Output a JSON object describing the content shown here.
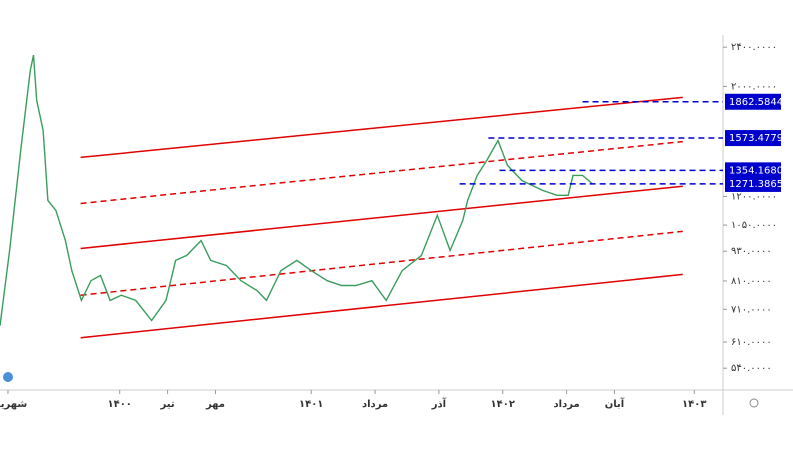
{
  "chart_data": {
    "type": "line",
    "log_scale": true,
    "grid": false,
    "xlim": [
      -0.5,
      44.8
    ],
    "ylim": [
      488,
      2540
    ],
    "xticks": [
      {
        "value": 0,
        "label": "شهریور"
      },
      {
        "value": 7,
        "label": "۱۴۰۰"
      },
      {
        "value": 10,
        "label": "تیر"
      },
      {
        "value": 13,
        "label": "مهر"
      },
      {
        "value": 19,
        "label": "۱۴۰۱"
      },
      {
        "value": 23,
        "label": "مرداد"
      },
      {
        "value": 27,
        "label": "آذر"
      },
      {
        "value": 31,
        "label": "۱۴۰۲"
      },
      {
        "value": 35,
        "label": "مرداد"
      },
      {
        "value": 38,
        "label": "آبان"
      },
      {
        "value": 43,
        "label": "۱۴۰۳"
      }
    ],
    "yticks": [
      {
        "value": 2400,
        "label": "۲۴۰۰.۰۰۰۰"
      },
      {
        "value": 2000,
        "label": "۲۰۰۰.۰۰۰۰"
      },
      {
        "value": 1200,
        "label": "۱۲۰۰.۰۰۰۰"
      },
      {
        "value": 1050,
        "label": "۱۰۵۰.۰۰۰۰"
      },
      {
        "value": 930,
        "label": "۹۳۰.۰۰۰۰"
      },
      {
        "value": 810,
        "label": "۸۱۰.۰۰۰۰"
      },
      {
        "value": 710,
        "label": "۷۱۰.۰۰۰۰"
      },
      {
        "value": 610,
        "label": "۶۱۰.۰۰۰۰"
      },
      {
        "value": 540,
        "label": "۵۴۰.۰۰۰۰"
      }
    ],
    "series": [
      {
        "color": "#3a9d5d",
        "x": [
          -0.5,
          0.1,
          0.8,
          1.4,
          1.6,
          1.8,
          2.2,
          2.5,
          3.0,
          3.6,
          4.0,
          4.6,
          5.2,
          5.8,
          6.4,
          7.1,
          8.0,
          9.0,
          9.9,
          10.5,
          11.2,
          12.1,
          12.7,
          13.7,
          14.6,
          15.6,
          16.2,
          17.1,
          18.1,
          19.0,
          20.0,
          20.9,
          21.8,
          22.8,
          23.7,
          24.7,
          25.9,
          26.9,
          27.7,
          28.5,
          28.8,
          29.4,
          30.0,
          30.7,
          31.3,
          32.2,
          33.5,
          34.4,
          35.1,
          35.4,
          36.0,
          36.6
        ],
        "values": [
          658,
          933,
          1486,
          2155,
          2313,
          1874,
          1631,
          1177,
          1124,
          977,
          850,
          740,
          811,
          831,
          740,
          758,
          740,
          674,
          740,
          891,
          912,
          977,
          891,
          870,
          811,
          775,
          740,
          850,
          891,
          850,
          811,
          793,
          793,
          811,
          740,
          850,
          912,
          1099,
          933,
          1073,
          1177,
          1323,
          1418,
          1556,
          1386,
          1292,
          1234,
          1206,
          1206,
          1323,
          1323,
          1274
        ]
      }
    ],
    "trend_lines": [
      {
        "color": "#e00000",
        "style": "solid",
        "start": [
          4.55,
          1438
        ],
        "end": [
          42.28,
          1901
        ]
      },
      {
        "color": "#e00000",
        "style": "dashed",
        "start": [
          4.55,
          1161
        ],
        "end": [
          42.28,
          1548
        ]
      },
      {
        "color": "#e00000",
        "style": "solid",
        "start": [
          4.55,
          942
        ],
        "end": [
          42.28,
          1258
        ]
      },
      {
        "color": "#e00000",
        "style": "dashed",
        "start": [
          4.55,
          758
        ],
        "end": [
          42.28,
          1020
        ]
      },
      {
        "color": "#e00000",
        "style": "solid",
        "start": [
          4.55,
          622
        ],
        "end": [
          42.28,
          835
        ]
      }
    ],
    "price_levels": [
      {
        "value": 1862.5844,
        "label": "1862.5844",
        "start": 36.0,
        "color": "#0000cc"
      },
      {
        "value": 1573.4779,
        "label": "1573.4779",
        "start": 30.1,
        "color": "#0000cc"
      },
      {
        "value": 1354.168,
        "label": "1354.1680",
        "start": 30.8,
        "color": "#0000cc"
      },
      {
        "value": 1271.3865,
        "label": "1271.3865",
        "start": 28.3,
        "color": "#0000cc"
      }
    ]
  }
}
